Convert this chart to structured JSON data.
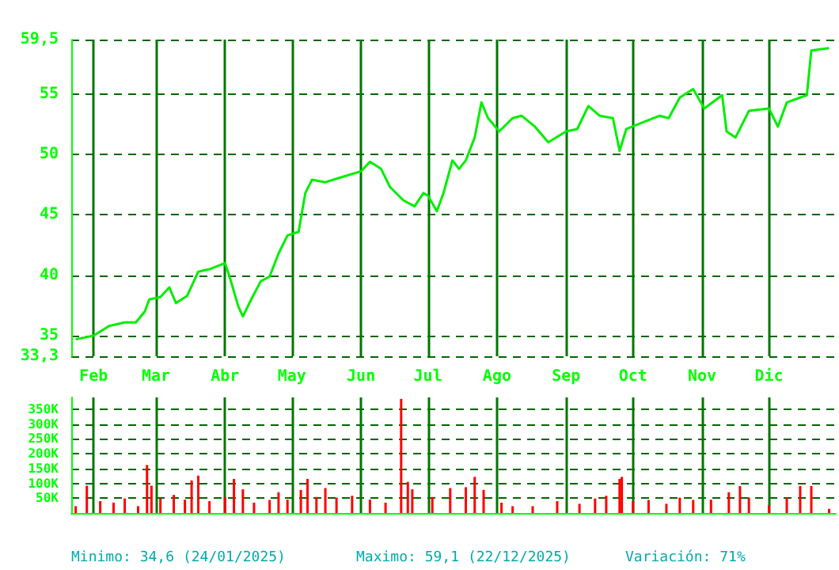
{
  "chart_data": [
    {
      "type": "line",
      "color": "#00ee00",
      "grid": true,
      "marker": "none",
      "line_style": "solid",
      "x": [
        "2025-01-24",
        "2025-02-01",
        "2025-02-08",
        "2025-02-15",
        "2025-02-20",
        "2025-02-24",
        "2025-02-26",
        "2025-03-03",
        "2025-03-07",
        "2025-03-10",
        "2025-03-15",
        "2025-03-20",
        "2025-03-25",
        "2025-04-01",
        "2025-04-03",
        "2025-04-07",
        "2025-04-09",
        "2025-04-13",
        "2025-04-17",
        "2025-04-21",
        "2025-04-25",
        "2025-04-29",
        "2025-05-04",
        "2025-05-07",
        "2025-05-10",
        "2025-05-16",
        "2025-05-23",
        "2025-06-01",
        "2025-06-05",
        "2025-06-10",
        "2025-06-14",
        "2025-06-20",
        "2025-06-25",
        "2025-06-29",
        "2025-07-01",
        "2025-07-05",
        "2025-07-08",
        "2025-07-12",
        "2025-07-15",
        "2025-07-18",
        "2025-07-22",
        "2025-07-25",
        "2025-07-28",
        "2025-08-02",
        "2025-08-08",
        "2025-08-12",
        "2025-08-18",
        "2025-08-24",
        "2025-09-01",
        "2025-09-06",
        "2025-09-11",
        "2025-09-16",
        "2025-09-22",
        "2025-09-25",
        "2025-09-28",
        "2025-10-06",
        "2025-10-13",
        "2025-10-17",
        "2025-10-22",
        "2025-10-28",
        "2025-11-02",
        "2025-11-10",
        "2025-11-12",
        "2025-11-16",
        "2025-11-22",
        "2025-12-01",
        "2025-12-05",
        "2025-12-09",
        "2025-12-15",
        "2025-12-18",
        "2025-12-20",
        "2025-12-28"
      ],
      "values": [
        34.7,
        35.0,
        35.8,
        36.1,
        36.1,
        37.0,
        38.0,
        38.2,
        39.0,
        37.7,
        38.3,
        40.3,
        40.5,
        41.0,
        39.9,
        37.4,
        36.6,
        38.1,
        39.5,
        39.9,
        41.8,
        43.3,
        43.6,
        46.8,
        47.9,
        47.7,
        48.1,
        48.6,
        49.4,
        48.8,
        47.3,
        46.2,
        45.7,
        46.8,
        46.6,
        45.3,
        46.8,
        49.5,
        48.8,
        49.5,
        51.4,
        54.3,
        53.0,
        51.9,
        53.0,
        53.2,
        52.3,
        51.0,
        51.9,
        52.1,
        54.0,
        53.2,
        53.0,
        50.3,
        52.1,
        52.7,
        53.2,
        53.0,
        54.7,
        55.4,
        53.8,
        54.9,
        51.9,
        51.4,
        53.6,
        53.8,
        52.3,
        54.3,
        54.7,
        54.9,
        58.6,
        58.8
      ],
      "xlim": [
        "2025-01-22",
        "2025-12-31"
      ],
      "xticks": [
        {
          "value": "2025-02-01",
          "label": "Feb"
        },
        {
          "value": "2025-03-01",
          "label": "Mar"
        },
        {
          "value": "2025-04-01",
          "label": "Abr"
        },
        {
          "value": "2025-05-01",
          "label": "May"
        },
        {
          "value": "2025-06-01",
          "label": "Jun"
        },
        {
          "value": "2025-07-01",
          "label": "Jul"
        },
        {
          "value": "2025-08-01",
          "label": "Ago"
        },
        {
          "value": "2025-09-01",
          "label": "Sep"
        },
        {
          "value": "2025-10-01",
          "label": "Oct"
        },
        {
          "value": "2025-11-01",
          "label": "Nov"
        },
        {
          "value": "2025-12-01",
          "label": "Dic"
        }
      ],
      "ylim": [
        33.3,
        59.5
      ],
      "yticks": [
        {
          "value": 33.3,
          "label": "33,3"
        },
        35,
        40,
        45,
        50,
        55,
        {
          "value": 59.5,
          "label": "59,5"
        }
      ]
    },
    {
      "type": "bar",
      "color": "#ff0000",
      "grid": true,
      "tick_labels": "y",
      "x": [
        "2025-01-24",
        "2025-01-29",
        "2025-02-04",
        "2025-02-10",
        "2025-02-15",
        "2025-02-21",
        "2025-02-25",
        "2025-02-27",
        "2025-03-03",
        "2025-03-09",
        "2025-03-14",
        "2025-03-17",
        "2025-03-20",
        "2025-03-25",
        "2025-04-01",
        "2025-04-05",
        "2025-04-09",
        "2025-04-14",
        "2025-04-21",
        "2025-04-25",
        "2025-04-29",
        "2025-05-05",
        "2025-05-08",
        "2025-05-12",
        "2025-05-16",
        "2025-05-21",
        "2025-05-28",
        "2025-06-05",
        "2025-06-12",
        "2025-06-19",
        "2025-06-22",
        "2025-06-24",
        "2025-07-03",
        "2025-07-11",
        "2025-07-18",
        "2025-07-22",
        "2025-07-26",
        "2025-08-03",
        "2025-08-08",
        "2025-08-17",
        "2025-08-28",
        "2025-09-07",
        "2025-09-14",
        "2025-09-19",
        "2025-09-25",
        "2025-09-26",
        "2025-10-01",
        "2025-10-08",
        "2025-10-16",
        "2025-10-22",
        "2025-10-28",
        "2025-11-05",
        "2025-11-13",
        "2025-11-18",
        "2025-11-22",
        "2025-12-01",
        "2025-12-09",
        "2025-12-15",
        "2025-12-20",
        "2025-12-28"
      ],
      "values": [
        23000,
        92000,
        40000,
        35000,
        49000,
        23000,
        162000,
        92000,
        49000,
        61000,
        45000,
        110000,
        126000,
        40000,
        54000,
        115000,
        80000,
        35000,
        44000,
        70000,
        45000,
        78000,
        115000,
        54000,
        84000,
        52000,
        58000,
        45000,
        35000,
        385000,
        105000,
        80000,
        54000,
        84000,
        87000,
        122000,
        78000,
        35000,
        23000,
        23000,
        40000,
        31000,
        49000,
        58000,
        115000,
        122000,
        40000,
        44000,
        31000,
        52000,
        44000,
        45000,
        70000,
        91000,
        52000,
        26000,
        52000,
        91000,
        91000,
        14000
      ],
      "xlim": [
        "2025-01-22",
        "2025-12-31"
      ],
      "xticks": [
        {
          "value": "2025-02-01",
          "label": null
        },
        {
          "value": "2025-03-01",
          "label": null
        },
        {
          "value": "2025-04-01",
          "label": null
        },
        {
          "value": "2025-05-01",
          "label": null
        },
        {
          "value": "2025-06-01",
          "label": null
        },
        {
          "value": "2025-07-01",
          "label": null
        },
        {
          "value": "2025-08-01",
          "label": null
        },
        {
          "value": "2025-09-01",
          "label": null
        },
        {
          "value": "2025-10-01",
          "label": null
        },
        {
          "value": "2025-11-01",
          "label": null
        },
        {
          "value": "2025-12-01",
          "label": null
        }
      ],
      "ylim": [
        0,
        390000
      ],
      "yticks": [
        {
          "value": 50000,
          "label": "50K"
        },
        {
          "value": 100000,
          "label": "100K"
        },
        {
          "value": 150000,
          "label": "150K"
        },
        {
          "value": 200000,
          "label": "200K"
        },
        {
          "value": 250000,
          "label": "250K"
        },
        {
          "value": 300000,
          "label": "300K"
        },
        {
          "value": 350000,
          "label": "350K"
        }
      ],
      "annotations": [
        "Minimo: 34,6 (24/01/2025)",
        "Maximo: 59,1 (22/12/2025)",
        "Variación: 71%"
      ]
    }
  ]
}
